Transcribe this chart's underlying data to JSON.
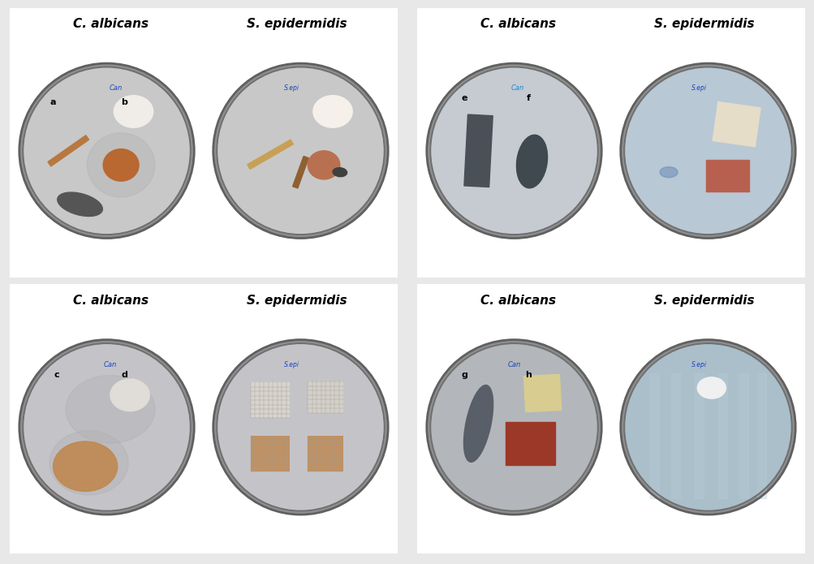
{
  "background_color": "#e8e8e8",
  "panel_configs": [
    {
      "id": "top_left",
      "ca_label": "C. albicans",
      "se_label": "S. epidermidis",
      "letter_labels": [
        "a",
        "b"
      ],
      "dish1_bg": "#c8c8c8",
      "dish2_bg": "#c8c8c8",
      "dish1_written": "Can",
      "dish2_written": "S.epi"
    },
    {
      "id": "top_right",
      "ca_label": "C. albicans",
      "se_label": "S. epidermidis",
      "letter_labels": [
        "e",
        "f"
      ],
      "dish1_bg": "#c0c8cc",
      "dish2_bg": "#b8c8d4",
      "dish1_written": "Can",
      "dish2_written": "S.epi"
    },
    {
      "id": "bottom_left",
      "ca_label": "C. albicans",
      "se_label": "S. epidermidis",
      "letter_labels": [
        "c",
        "d"
      ],
      "dish1_bg": "#c4c4c8",
      "dish2_bg": "#c4c4c8",
      "dish1_written": "Can",
      "dish2_written": "S.epi"
    },
    {
      "id": "bottom_right",
      "ca_label": "C. albicans",
      "se_label": "S. epidermidis",
      "letter_labels": [
        "g",
        "h"
      ],
      "dish1_bg": "#b8bcc0",
      "dish2_bg": "#b0c4d0",
      "dish1_written": "Can",
      "dish2_written": "S.epi"
    }
  ]
}
